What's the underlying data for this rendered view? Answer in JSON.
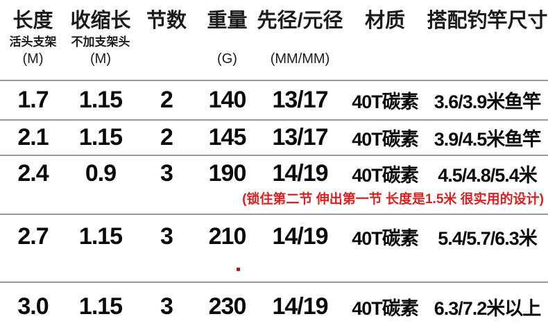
{
  "colors": {
    "background": "#ffffff",
    "text": "#0a0a0a",
    "separator_line": "#989898",
    "annotation_red": "#d62222"
  },
  "table": {
    "columns": [
      {
        "title": "长度",
        "sub": "活头支架",
        "unit": "(M)"
      },
      {
        "title": "收缩长",
        "sub": "不加支架头",
        "unit": "(M)"
      },
      {
        "title": "节数",
        "sub": "",
        "unit": ""
      },
      {
        "title": "重量",
        "sub": "",
        "unit": "(G)"
      },
      {
        "title": "先径/元径",
        "sub": "",
        "unit": "(MM/MM)"
      },
      {
        "title": "材质",
        "sub": "",
        "unit": ""
      },
      {
        "title": "搭配钓竿尺寸",
        "sub": "",
        "unit": ""
      }
    ],
    "rows": [
      {
        "cells": [
          "1.7",
          "1.15",
          "2",
          "140",
          "13/17",
          "40T碳素",
          "3.6/3.9米鱼竿"
        ],
        "note": ""
      },
      {
        "cells": [
          "2.1",
          "1.15",
          "2",
          "145",
          "13/17",
          "40T碳素",
          "3.9/4.5米鱼竿"
        ],
        "note": ""
      },
      {
        "cells": [
          "2.4",
          "0.9",
          "3",
          "190",
          "14/19",
          "40T碳素",
          "4.5/4.8/5.4米"
        ],
        "note": "(锁住第二节 伸出第一节 长度是1.5米 很实用的设计)"
      },
      {
        "cells": [
          "2.7",
          "1.15",
          "3",
          "210",
          "14/19",
          "40T碳素",
          "5.4/5.7/6.3米"
        ],
        "note": ""
      },
      {
        "cells": [
          "3.0",
          "1.15",
          "3",
          "230",
          "14/19",
          "40T碳素",
          "6.3/7.2米以上"
        ],
        "note": ""
      }
    ]
  }
}
